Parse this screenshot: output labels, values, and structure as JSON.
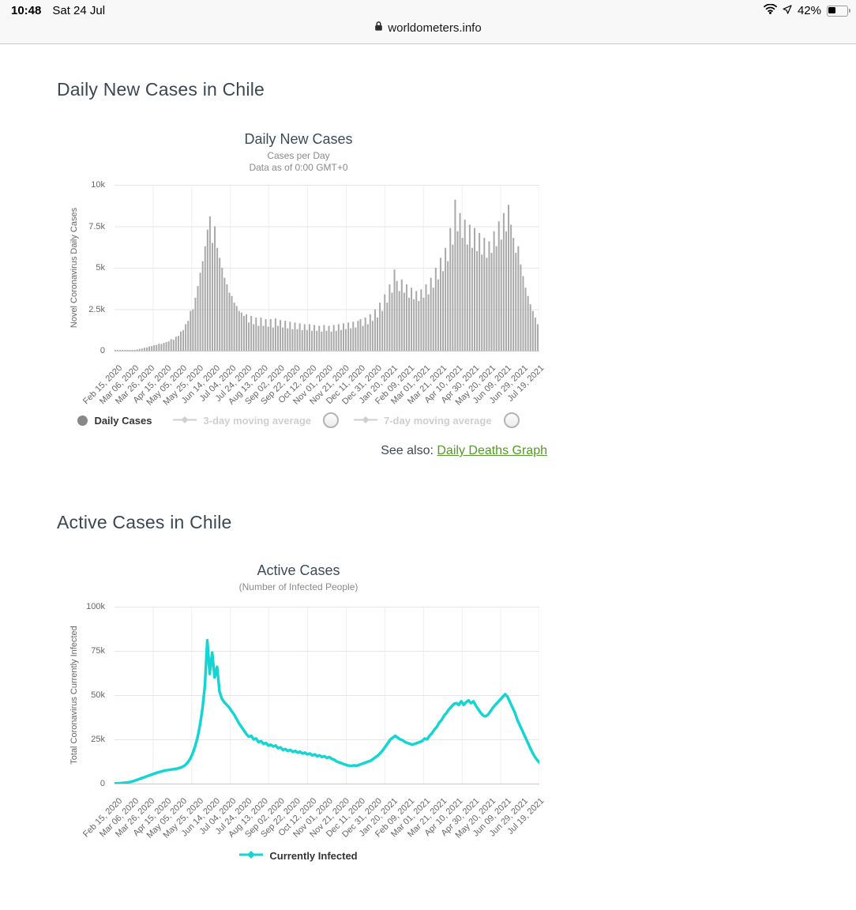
{
  "status_bar": {
    "time": "10:48",
    "date": "Sat 24 Jul",
    "battery": "42%"
  },
  "address_bar": {
    "url": "worldometers.info"
  },
  "page": {
    "section1_title": "Daily New Cases in Chile",
    "see_also_label": "See also:",
    "see_also_link": "Daily Deaths Graph",
    "section2_title": "Active Cases in Chile"
  },
  "chart_data": [
    {
      "type": "bar",
      "title": "Daily New Cases",
      "subtitle": "Cases per Day",
      "subtitle2": "Data as of 0:00 GMT+0",
      "ylabel": "Novel Coronavirus Daily Cases",
      "yticks": [
        "10k",
        "7.5k",
        "5k",
        "2.5k",
        "0"
      ],
      "ylim": [
        0,
        10000
      ],
      "grid": true,
      "legend_position": "bottom",
      "bar_color": "#a9a9a9",
      "legend": [
        {
          "label": "Daily Cases",
          "active": true
        },
        {
          "label": "3-day moving average",
          "active": false
        },
        {
          "label": "7-day moving average",
          "active": false
        }
      ],
      "xticklabels": [
        "Feb 15, 2020",
        "Mar 06, 2020",
        "Mar 26, 2020",
        "Apr 15, 2020",
        "May 05, 2020",
        "May 25, 2020",
        "Jun 14, 2020",
        "Jul 04, 2020",
        "Jul 24, 2020",
        "Aug 13, 2020",
        "Sep 02, 2020",
        "Sep 22, 2020",
        "Oct 12, 2020",
        "Nov 01, 2020",
        "Nov 21, 2020",
        "Dec 11, 2020",
        "Dec 31, 2020",
        "Jan 20, 2021",
        "Feb 09, 2021",
        "Mar 01, 2021",
        "Mar 21, 2021",
        "Apr 10, 2021",
        "Apr 30, 2021",
        "May 20, 2021",
        "Jun 09, 2021",
        "Jun 29, 2021",
        "Jul 19, 2021"
      ],
      "sample_step_days": 3,
      "values": [
        2,
        3,
        5,
        8,
        12,
        18,
        25,
        30,
        55,
        75,
        110,
        130,
        180,
        200,
        260,
        280,
        340,
        350,
        420,
        400,
        470,
        520,
        560,
        700,
        660,
        850,
        900,
        1150,
        1250,
        1600,
        1800,
        2400,
        2500,
        3200,
        3900,
        4700,
        5400,
        6300,
        7300,
        8100,
        6500,
        7500,
        6200,
        5600,
        5000,
        4400,
        4000,
        3500,
        3300,
        2900,
        2700,
        2400,
        2300,
        2100,
        2200,
        1700,
        2100,
        1600,
        2000,
        1500,
        2000,
        1500,
        1900,
        1450,
        1900,
        1400,
        1950,
        1500,
        1850,
        1400,
        1800,
        1350,
        1750,
        1300,
        1700,
        1300,
        1650,
        1250,
        1600,
        1250,
        1600,
        1200,
        1550,
        1200,
        1500,
        1150,
        1550,
        1200,
        1500,
        1150,
        1550,
        1200,
        1600,
        1250,
        1650,
        1300,
        1700,
        1350,
        1750,
        1400,
        1800,
        1900,
        1500,
        2000,
        1600,
        2200,
        1800,
        2500,
        2000,
        2900,
        2400,
        3400,
        2900,
        4000,
        3500,
        4900,
        4200,
        3600,
        4300,
        3500,
        4000,
        3200,
        3800,
        3100,
        3600,
        3000,
        3700,
        3200,
        4000,
        3400,
        4400,
        3800,
        5000,
        4300,
        5600,
        4800,
        6200,
        5400,
        7400,
        6400,
        9100,
        7200,
        8300,
        6800,
        7900,
        6400,
        7600,
        6200,
        7400,
        6000,
        7100,
        5800,
        6800,
        5600,
        6600,
        5900,
        7200,
        6300,
        7800,
        6700,
        8300,
        7200,
        8800,
        7600,
        6800,
        5900,
        6300,
        5200,
        4500,
        3800,
        3300,
        2800,
        2400,
        2000,
        1600
      ]
    },
    {
      "type": "line",
      "title": "Active Cases",
      "subtitle": "(Number of Infected People)",
      "ylabel": "Total Coronavirus Currently Infected",
      "yticks": [
        "100k",
        "75k",
        "50k",
        "25k",
        "0"
      ],
      "ylim": [
        0,
        100000
      ],
      "grid": true,
      "legend_position": "bottom",
      "line_color": "#15d5d2",
      "legend": [
        {
          "label": "Currently Infected",
          "active": true
        }
      ],
      "xticklabels": [
        "Feb 15, 2020",
        "Mar 06, 2020",
        "Mar 26, 2020",
        "Apr 15, 2020",
        "May 05, 2020",
        "May 25, 2020",
        "Jun 14, 2020",
        "Jul 04, 2020",
        "Jul 24, 2020",
        "Aug 13, 2020",
        "Sep 02, 2020",
        "Sep 22, 2020",
        "Oct 12, 2020",
        "Nov 01, 2020",
        "Nov 21, 2020",
        "Dec 11, 2020",
        "Dec 31, 2020",
        "Jan 20, 2021",
        "Feb 09, 2021",
        "Mar 01, 2021",
        "Mar 21, 2021",
        "Apr 10, 2021",
        "Apr 30, 2021",
        "May 20, 2021",
        "Jun 09, 2021",
        "Jun 29, 2021",
        "Jul 19, 2021"
      ],
      "sample_step_days": 3,
      "values": [
        100,
        150,
        200,
        300,
        450,
        600,
        800,
        1100,
        1500,
        2000,
        2500,
        3000,
        3500,
        4000,
        4500,
        5000,
        5500,
        6000,
        6400,
        6800,
        7200,
        7500,
        7700,
        7900,
        8100,
        8300,
        8600,
        9000,
        9600,
        10500,
        12000,
        14000,
        17000,
        21000,
        26000,
        33000,
        42000,
        55000,
        81000,
        62000,
        74000,
        60000,
        66000,
        52000,
        48000,
        46000,
        44500,
        43000,
        41000,
        39000,
        36500,
        34000,
        32000,
        30000,
        28000,
        26500,
        27000,
        25000,
        25500,
        23500,
        24000,
        22500,
        23000,
        21500,
        22000,
        21000,
        21500,
        20000,
        20500,
        19000,
        19500,
        18500,
        19000,
        18000,
        18500,
        17500,
        18000,
        17000,
        17500,
        16500,
        17000,
        16000,
        16500,
        15500,
        16000,
        15000,
        15500,
        14500,
        15000,
        14000,
        13500,
        12500,
        12000,
        11500,
        11000,
        10500,
        10200,
        10000,
        10300,
        10100,
        10500,
        11000,
        11500,
        12000,
        12500,
        13000,
        14000,
        15000,
        16000,
        17500,
        19000,
        21000,
        23000,
        25000,
        26000,
        27000,
        26000,
        25000,
        24500,
        23500,
        23000,
        22500,
        22000,
        22500,
        23000,
        23500,
        24000,
        25500,
        25000,
        27000,
        28500,
        30500,
        32000,
        34500,
        36000,
        38500,
        40000,
        42000,
        43500,
        45000,
        45500,
        44500,
        46500,
        44500,
        46000,
        47000,
        45500,
        46500,
        44000,
        42000,
        40000,
        38500,
        38000,
        39000,
        41000,
        43000,
        44500,
        46000,
        47500,
        49000,
        50500,
        49000,
        46000,
        43000,
        40000,
        36000,
        33000,
        30000,
        27000,
        24000,
        21000,
        18000,
        15500,
        13500,
        12000
      ]
    }
  ]
}
